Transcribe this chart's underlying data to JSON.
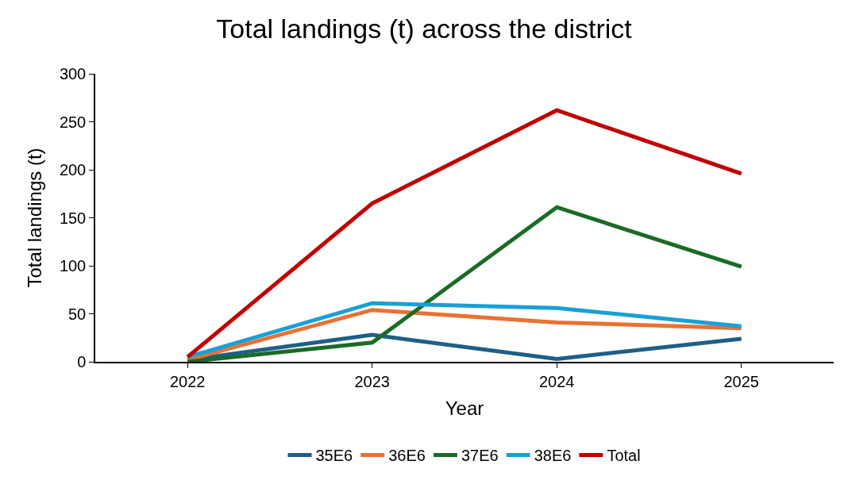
{
  "chart_data": {
    "type": "line",
    "title": "Total landings (t) across the district",
    "xlabel": "Year",
    "ylabel": "Total landings (t)",
    "categories": [
      "2022",
      "2023",
      "2024",
      "2025"
    ],
    "series": [
      {
        "name": "35E6",
        "color": "#1f5f86",
        "values": [
          2,
          28,
          3,
          24
        ]
      },
      {
        "name": "36E6",
        "color": "#e97132",
        "values": [
          2,
          54,
          41,
          35
        ]
      },
      {
        "name": "37E6",
        "color": "#1a6b26",
        "values": [
          0,
          20,
          161,
          99
        ]
      },
      {
        "name": "38E6",
        "color": "#19a0d6",
        "values": [
          5,
          61,
          56,
          37
        ]
      },
      {
        "name": "Total",
        "color": "#c00000",
        "values": [
          5,
          165,
          262,
          196
        ]
      }
    ],
    "ylim": [
      0,
      300
    ],
    "yticks": [
      0,
      50,
      100,
      150,
      200,
      250,
      300
    ],
    "legend": "bottom",
    "marker": "none",
    "line_style": "solid"
  }
}
